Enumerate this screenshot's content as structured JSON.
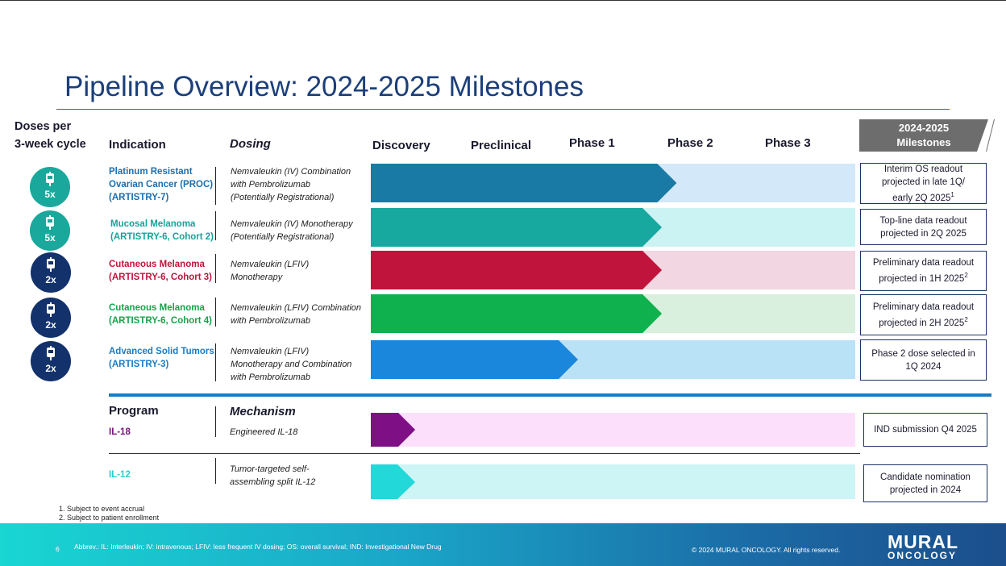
{
  "title": "Pipeline Overview: 2024-2025 Milestones",
  "headers": {
    "doses_line1": "Doses per",
    "doses_line2": "3-week cycle",
    "indication": "Indication",
    "dosing": "Dosing",
    "discovery": "Discovery",
    "preclinical": "Preclinical",
    "phase1": "Phase 1",
    "phase2": "Phase 2",
    "phase3": "Phase 3",
    "milestones_line1": "2024-2025",
    "milestones_line2": "Milestones"
  },
  "rows": [
    {
      "dose": "5x",
      "indication": [
        "Platinum Resistant",
        "Ovarian Cancer (PROC)",
        "(ARTISTRY-7)"
      ],
      "dosing": [
        "Nemvaleukin (IV) Combination",
        "with Pembrolizumab",
        "(Potentially Registrational)"
      ],
      "progress_phase": 3.1,
      "milestone": [
        "Interim OS readout",
        "projected in late 1Q/",
        "early 2Q 2025"
      ],
      "footnote_ref": "1",
      "colors": {
        "dose": "#1aa89c",
        "text": "#1b6fb0",
        "bar": "#1a7aa6",
        "light": "#d3e8f8"
      }
    },
    {
      "dose": "5x",
      "indication": [
        "Mucosal Melanoma",
        "(ARTISTRY-6, Cohort 2)"
      ],
      "dosing": [
        "Nemvaleukin (IV) Monotherapy",
        "(Potentially Registrational)"
      ],
      "progress_phase": 2.95,
      "milestone": [
        "Top-line data readout",
        "projected in 2Q 2025"
      ],
      "footnote_ref": "",
      "colors": {
        "dose": "#1aa89c",
        "text": "#14a49a",
        "bar": "#17a8a0",
        "light": "#ccf3f3"
      }
    },
    {
      "dose": "2x",
      "indication": [
        "Cutaneous Melanoma",
        "(ARTISTRY-6, Cohort 3)"
      ],
      "dosing": [
        "Nemvaleukin (LFIV)",
        "Monotherapy"
      ],
      "progress_phase": 2.95,
      "milestone": [
        "Preliminary data readout",
        "projected in 1H 2025"
      ],
      "footnote_ref": "2",
      "colors": {
        "dose": "#13316b",
        "text": "#c0143c",
        "bar": "#c0143c",
        "light": "#f2d6e1"
      }
    },
    {
      "dose": "2x",
      "indication": [
        "Cutaneous Melanoma",
        "(ARTISTRY-6, Cohort 4)"
      ],
      "dosing": [
        "Nemvaleukin (LFIV) Combination",
        "with Pembrolizumab"
      ],
      "progress_phase": 2.95,
      "milestone": [
        "Preliminary data readout",
        "projected in 2H 2025"
      ],
      "footnote_ref": "2",
      "colors": {
        "dose": "#13316b",
        "text": "#16a34a",
        "bar": "#0fb04e",
        "light": "#d8f0dd"
      }
    },
    {
      "dose": "2x",
      "indication": [
        "Advanced Solid Tumors",
        "(ARTISTRY-3)"
      ],
      "dosing": [
        "Nemvaleukin (LFIV)",
        "Monotherapy and Combination",
        "with Pembrolizumab"
      ],
      "progress_phase": 2.1,
      "milestone": [
        "Phase 2 dose selected in",
        "1Q 2024"
      ],
      "footnote_ref": "",
      "colors": {
        "dose": "#13316b",
        "text": "#1b7bc4",
        "bar": "#1a86dc",
        "light": "#b9e2f7"
      }
    }
  ],
  "program_headers": {
    "program": "Program",
    "mechanism": "Mechanism"
  },
  "programs": [
    {
      "name": "IL-18",
      "mechanism": [
        "Engineered IL-18"
      ],
      "progress_phase": 0.45,
      "milestone": [
        "IND submission Q4 2025"
      ],
      "colors": {
        "text": "#7a0f7e",
        "bar": "#7e0f84",
        "light": "#fce0fb"
      }
    },
    {
      "name": "IL-12",
      "mechanism": [
        "Tumor-targeted self-",
        "assembling split IL-12"
      ],
      "progress_phase": 0.45,
      "milestone": [
        "Candidate nomination",
        "projected in 2024"
      ],
      "colors": {
        "text": "#27d0d0",
        "bar": "#22d8d8",
        "light": "#cdf5f6"
      }
    }
  ],
  "footnotes": [
    "1. Subject to event accrual",
    "2. Subject to patient enrollment"
  ],
  "footer": {
    "page": "6",
    "abbrev": "Abbrev.: IL: Interleukin; IV: intravenous; LFIV: less frequent IV dosing; OS: overall survival; IND: Investigational New Drug",
    "copyright": "© 2024 MURAL ONCOLOGY. All rights reserved.",
    "logo_line1": "MURAL",
    "logo_line2": "ONCOLOGY"
  },
  "colors": {
    "title": "#1b3f7a",
    "milestone_header": "#6d6d6d",
    "accent_blue": "#1b7bbf"
  }
}
